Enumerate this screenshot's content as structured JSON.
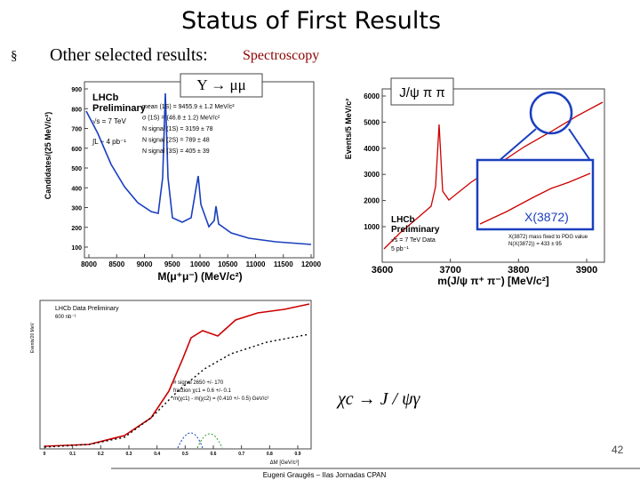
{
  "header": {
    "title": "Status of First Results"
  },
  "bullet": {
    "text": "Other selected results:",
    "topic": "Spectroscopy"
  },
  "upsilon_plot": {
    "label": "Υ → μμ",
    "experiment": "LHCb",
    "status": "Preliminary",
    "energy": "√s = 7 TeV",
    "lumi": "∫L ~ 4 pb⁻¹",
    "fit": [
      "mean (1S) = 9455.9 ± 1.2 MeV/c²",
      "σ (1S) = (46.8 ± 1.2) MeV/c²",
      "N signal (1S) = 3159 ± 78",
      "N signal (2S) = 789 ± 48",
      "N signal (3S) = 405 ± 39"
    ],
    "y_label": "Candidates/(25 MeV/c²)",
    "x_label": "M(μ⁺μ⁻) (MeV/c²)",
    "yticks": [
      100,
      200,
      300,
      400,
      500,
      600,
      700,
      800,
      900
    ],
    "xticks": [
      8000,
      8500,
      9000,
      9500,
      10000,
      10500,
      11000,
      11500,
      12000
    ]
  },
  "x3872_plot": {
    "label": "J/ψ π π",
    "experiment": "LHCb",
    "status": "Preliminary",
    "energy": "√s = 7 TeV Data",
    "lumi": "5 pb⁻¹",
    "fit": [
      "X(3872) mass fixed to PDG value",
      "N(X(3872)) = 433 ± 95"
    ],
    "peak_label": "X(3872)",
    "y_label": "Events/5 MeV/c²",
    "x_label": "m(J/ψ π⁺ π⁻) [MeV/c²]",
    "yticks": [
      1000,
      2000,
      3000,
      4000,
      5000,
      6000
    ],
    "xticks": [
      3600,
      3700,
      3800,
      3900
    ]
  },
  "chic_plot": {
    "title": "LHCb Data Preliminary",
    "lumi": "600 nb⁻¹",
    "fit": [
      "# signal 2650 +/- 170",
      "fraction χc1 = 0.6 +/- 0.1",
      "m(χc1) - m(χc2) = (0.410 +/- 0.5) GeV/c²"
    ],
    "y_label": "Events/20 MeV",
    "x_label": "ΔM [GeV/c²]",
    "xticks": [
      0,
      0.1,
      0.2,
      0.3,
      0.4,
      0.5,
      0.6,
      0.7,
      0.8,
      0.9
    ],
    "decay": "χc → J / ψγ"
  },
  "footer": {
    "page": "42",
    "author": "Eugeni Graugés – IIas Jornadas CPAN"
  }
}
